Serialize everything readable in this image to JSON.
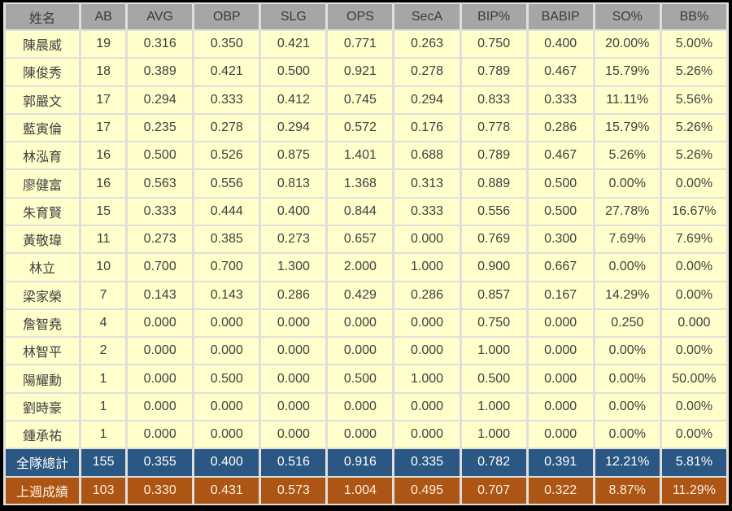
{
  "chart_data": {
    "type": "table",
    "title": "",
    "columns": [
      "姓名",
      "AB",
      "AVG",
      "OBP",
      "SLG",
      "OPS",
      "SecA",
      "BIP%",
      "BABIP",
      "SO%",
      "BB%"
    ],
    "rows": [
      [
        "陳晨威",
        "19",
        "0.316",
        "0.350",
        "0.421",
        "0.771",
        "0.263",
        "0.750",
        "0.400",
        "20.00%",
        "5.00%"
      ],
      [
        "陳俊秀",
        "18",
        "0.389",
        "0.421",
        "0.500",
        "0.921",
        "0.278",
        "0.789",
        "0.467",
        "15.79%",
        "5.26%"
      ],
      [
        "郭嚴文",
        "17",
        "0.294",
        "0.333",
        "0.412",
        "0.745",
        "0.294",
        "0.833",
        "0.333",
        "11.11%",
        "5.56%"
      ],
      [
        "藍寅倫",
        "17",
        "0.235",
        "0.278",
        "0.294",
        "0.572",
        "0.176",
        "0.778",
        "0.286",
        "15.79%",
        "5.26%"
      ],
      [
        "林泓育",
        "16",
        "0.500",
        "0.526",
        "0.875",
        "1.401",
        "0.688",
        "0.789",
        "0.467",
        "5.26%",
        "5.26%"
      ],
      [
        "廖健富",
        "16",
        "0.563",
        "0.556",
        "0.813",
        "1.368",
        "0.313",
        "0.889",
        "0.500",
        "0.00%",
        "0.00%"
      ],
      [
        "朱育賢",
        "15",
        "0.333",
        "0.444",
        "0.400",
        "0.844",
        "0.333",
        "0.556",
        "0.500",
        "27.78%",
        "16.67%"
      ],
      [
        "黃敬瑋",
        "11",
        "0.273",
        "0.385",
        "0.273",
        "0.657",
        "0.000",
        "0.769",
        "0.300",
        "7.69%",
        "7.69%"
      ],
      [
        "林立",
        "10",
        "0.700",
        "0.700",
        "1.300",
        "2.000",
        "1.000",
        "0.900",
        "0.667",
        "0.00%",
        "0.00%"
      ],
      [
        "梁家榮",
        "7",
        "0.143",
        "0.143",
        "0.286",
        "0.429",
        "0.286",
        "0.857",
        "0.167",
        "14.29%",
        "0.00%"
      ],
      [
        "詹智堯",
        "4",
        "0.000",
        "0.000",
        "0.000",
        "0.000",
        "0.000",
        "0.750",
        "0.000",
        "0.250",
        "0.000"
      ],
      [
        "林智平",
        "2",
        "0.000",
        "0.000",
        "0.000",
        "0.000",
        "0.000",
        "1.000",
        "0.000",
        "0.00%",
        "0.00%"
      ],
      [
        "陽耀勳",
        "1",
        "0.000",
        "0.500",
        "0.000",
        "0.500",
        "1.000",
        "0.500",
        "0.000",
        "0.00%",
        "50.00%"
      ],
      [
        "劉時豪",
        "1",
        "0.000",
        "0.000",
        "0.000",
        "0.000",
        "0.000",
        "1.000",
        "0.000",
        "0.00%",
        "0.00%"
      ],
      [
        "鍾承祐",
        "1",
        "0.000",
        "0.000",
        "0.000",
        "0.000",
        "0.000",
        "1.000",
        "0.000",
        "0.00%",
        "0.00%"
      ]
    ],
    "summary_rows": [
      {
        "id": "team-total",
        "cells": [
          "全隊總計",
          "155",
          "0.355",
          "0.400",
          "0.516",
          "0.916",
          "0.335",
          "0.782",
          "0.391",
          "12.21%",
          "5.81%"
        ]
      },
      {
        "id": "last-week",
        "cells": [
          "上週成績",
          "103",
          "0.330",
          "0.431",
          "0.573",
          "1.004",
          "0.495",
          "0.707",
          "0.322",
          "8.87%",
          "11.29%"
        ]
      }
    ],
    "colors": {
      "header_bg": "#a6a6a6",
      "header_text": "#3b3b3b",
      "row_bg": "#ffffcc",
      "row_text": "#3f3f3f",
      "team_total_bg": "#2a5783",
      "team_total_text": "#ffffff",
      "last_week_bg": "#ad5514",
      "last_week_text": "#fdeede",
      "grid": "#dfdfdb",
      "outer_border": "#000000"
    },
    "layout": {
      "grid": "on",
      "legend": "none"
    }
  }
}
